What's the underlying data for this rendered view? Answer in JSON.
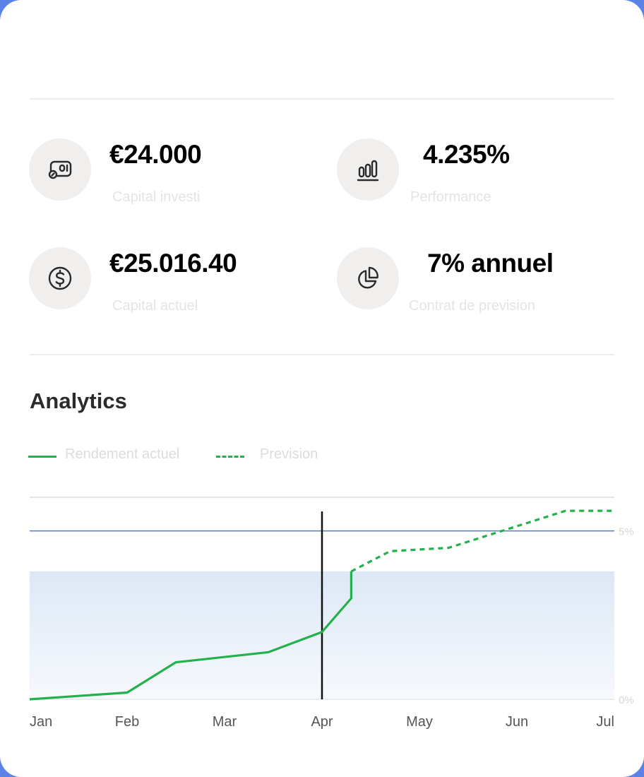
{
  "stats": [
    {
      "value": "€24.000",
      "label": "Capital investi",
      "icon": "wallet-icon"
    },
    {
      "value": "4.235%",
      "label": "Performance",
      "icon": "bar-chart-icon"
    },
    {
      "value": "€25.016.40",
      "label": "Capital actuel",
      "icon": "dollar-coin-icon"
    },
    {
      "value": "7% annuel",
      "label": "Contrat de prevision",
      "icon": "pie-chart-icon"
    }
  ],
  "analytics": {
    "title": "Analytics",
    "legend": {
      "actual": "Rendement actuel",
      "forecast": "Prevision"
    }
  },
  "colors": {
    "line": "#22b14c",
    "reference": "#4a7fd4",
    "band": "#dde8f6",
    "marker": "#111111",
    "icon_bg": "#f1efed"
  },
  "chart_data": {
    "type": "line",
    "x_ticks": [
      "Jan",
      "Feb",
      "Mar",
      "Apr",
      "May",
      "Jun",
      "Jul"
    ],
    "y_ticks": [
      "0%",
      "5%"
    ],
    "ylim": [
      0,
      6
    ],
    "reference_line": 5,
    "current_marker": 3.0,
    "series": [
      {
        "name": "Rendement actuel",
        "style": "solid",
        "points": [
          [
            0,
            0
          ],
          [
            1,
            0.2
          ],
          [
            1.5,
            1.1
          ],
          [
            2.45,
            1.4
          ],
          [
            3,
            2.0
          ],
          [
            3.3,
            3.0
          ],
          [
            3.3,
            3.8
          ]
        ]
      },
      {
        "name": "Prevision",
        "style": "dashed",
        "points": [
          [
            3.3,
            3.8
          ],
          [
            3.7,
            4.4
          ],
          [
            4.3,
            4.5
          ],
          [
            5.5,
            5.6
          ],
          [
            6,
            5.6
          ]
        ]
      }
    ]
  }
}
